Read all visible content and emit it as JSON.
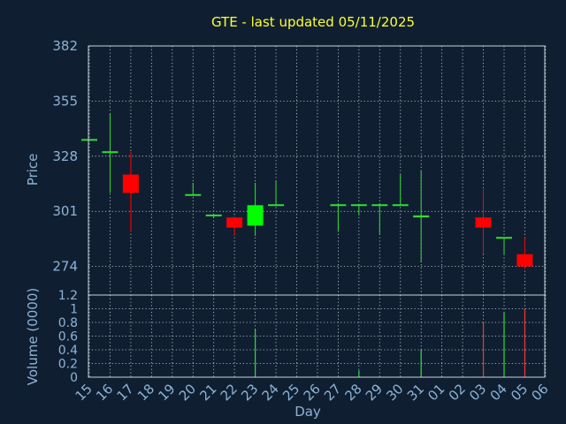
{
  "chart_data": {
    "type": "candlestick",
    "title": "GTE - last updated 05/11/2025",
    "xlabel": "Day",
    "x_ticks": [
      "15",
      "16",
      "17",
      "18",
      "19",
      "20",
      "21",
      "22",
      "23",
      "24",
      "25",
      "26",
      "27",
      "28",
      "29",
      "30",
      "31",
      "01",
      "02",
      "03",
      "04",
      "05",
      "06"
    ],
    "price_panel": {
      "ylabel": "Price",
      "ylim": [
        260,
        382
      ],
      "y_ticks": [
        382,
        355,
        328,
        301,
        274
      ],
      "candles": [
        {
          "day": "15",
          "open": 336,
          "high": 336,
          "low": 336,
          "close": 336,
          "color": "#33dd33"
        },
        {
          "day": "16",
          "open": 330,
          "high": 349,
          "low": 310,
          "close": 330,
          "color": "#33dd33"
        },
        {
          "day": "17",
          "open": 319,
          "high": 330,
          "low": 291,
          "close": 310,
          "color": "#ff0000"
        },
        {
          "day": "20",
          "open": 309,
          "high": 315,
          "low": 309,
          "close": 309,
          "color": "#33dd33"
        },
        {
          "day": "21",
          "open": 299,
          "high": 299,
          "low": 298,
          "close": 299,
          "color": "#33dd33"
        },
        {
          "day": "22",
          "open": 298,
          "high": 298,
          "low": 289,
          "close": 293,
          "color": "#ff0000"
        },
        {
          "day": "23",
          "open": 294,
          "high": 315,
          "low": 289,
          "close": 304,
          "color": "#00ff00"
        },
        {
          "day": "24",
          "open": 304,
          "high": 316,
          "low": 304,
          "close": 304,
          "color": "#33dd33"
        },
        {
          "day": "27",
          "open": 304,
          "high": 305,
          "low": 291,
          "close": 304,
          "color": "#33dd33"
        },
        {
          "day": "28",
          "open": 304,
          "high": 304,
          "low": 299,
          "close": 304,
          "color": "#33dd33"
        },
        {
          "day": "29",
          "open": 304,
          "high": 305,
          "low": 290,
          "close": 304,
          "color": "#33dd33"
        },
        {
          "day": "30",
          "open": 304,
          "high": 319,
          "low": 304,
          "close": 304,
          "color": "#33dd33"
        },
        {
          "day": "31",
          "open": 299,
          "high": 321,
          "low": 276,
          "close": 298,
          "color": "#33dd33"
        },
        {
          "day": "03",
          "open": 298,
          "high": 312,
          "low": 280,
          "close": 293,
          "color": "#ff0000"
        },
        {
          "day": "04",
          "open": 288,
          "high": 288,
          "low": 280,
          "close": 288,
          "color": "#33dd33"
        },
        {
          "day": "05",
          "open": 280,
          "high": 288,
          "low": 273,
          "close": 274,
          "color": "#ff0000"
        }
      ]
    },
    "volume_panel": {
      "ylabel": "Volume (0000)",
      "ylim": [
        0,
        1.2
      ],
      "y_ticks": [
        "1.2",
        "1",
        "0.8",
        "0.6",
        "0.4",
        "0.2",
        "0"
      ],
      "bars": [
        {
          "day": "23",
          "value": 0.7,
          "color": "#33dd33"
        },
        {
          "day": "28",
          "value": 0.1,
          "color": "#33dd33"
        },
        {
          "day": "31",
          "value": 0.4,
          "color": "#33dd33"
        },
        {
          "day": "03",
          "value": 0.8,
          "color": "#ff3333"
        },
        {
          "day": "04",
          "value": 0.95,
          "color": "#33dd33"
        },
        {
          "day": "05",
          "value": 1.0,
          "color": "#ff3333"
        }
      ]
    },
    "grid": true
  }
}
